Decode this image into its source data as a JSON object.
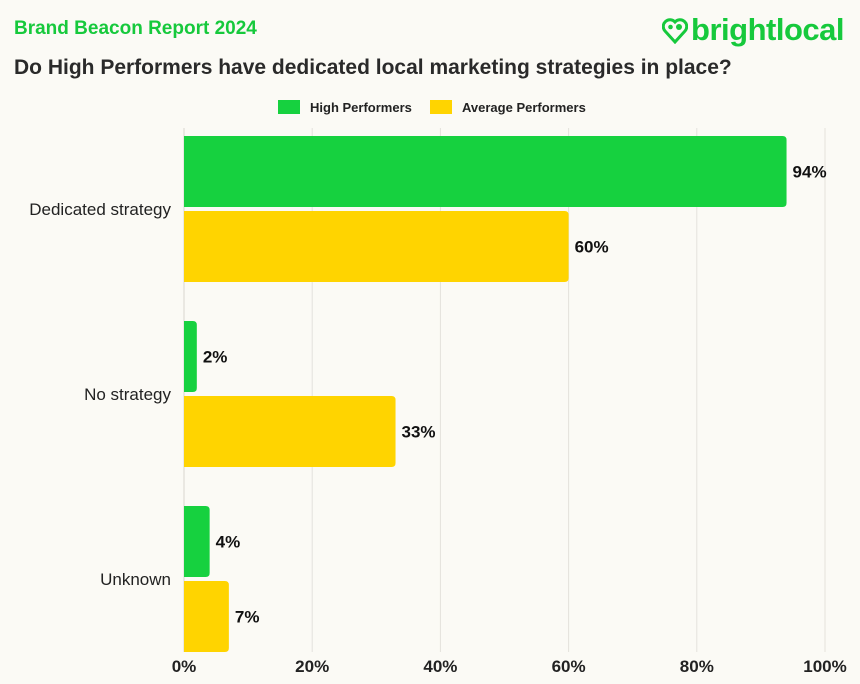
{
  "header": {
    "report": "Brand Beacon Report 2024",
    "logo": "brightlocal"
  },
  "chart_data": {
    "type": "bar",
    "orientation": "horizontal",
    "title": "Do High Performers have dedicated local marketing strategies in place?",
    "categories": [
      "Dedicated strategy",
      "No strategy",
      "Unknown"
    ],
    "series": [
      {
        "name": "High Performers",
        "values": [
          94,
          2,
          4
        ],
        "color": "#16d13f"
      },
      {
        "name": "Average Performers",
        "values": [
          60,
          33,
          7
        ],
        "color": "#ffd400"
      }
    ],
    "xlim": [
      0,
      100
    ],
    "xticks": [
      "0%",
      "20%",
      "40%",
      "60%",
      "80%",
      "100%"
    ],
    "data_labels": [
      [
        "94%",
        "2%",
        "4%"
      ],
      [
        "60%",
        "33%",
        "7%"
      ]
    ],
    "legend": "top-center",
    "grid": true
  }
}
